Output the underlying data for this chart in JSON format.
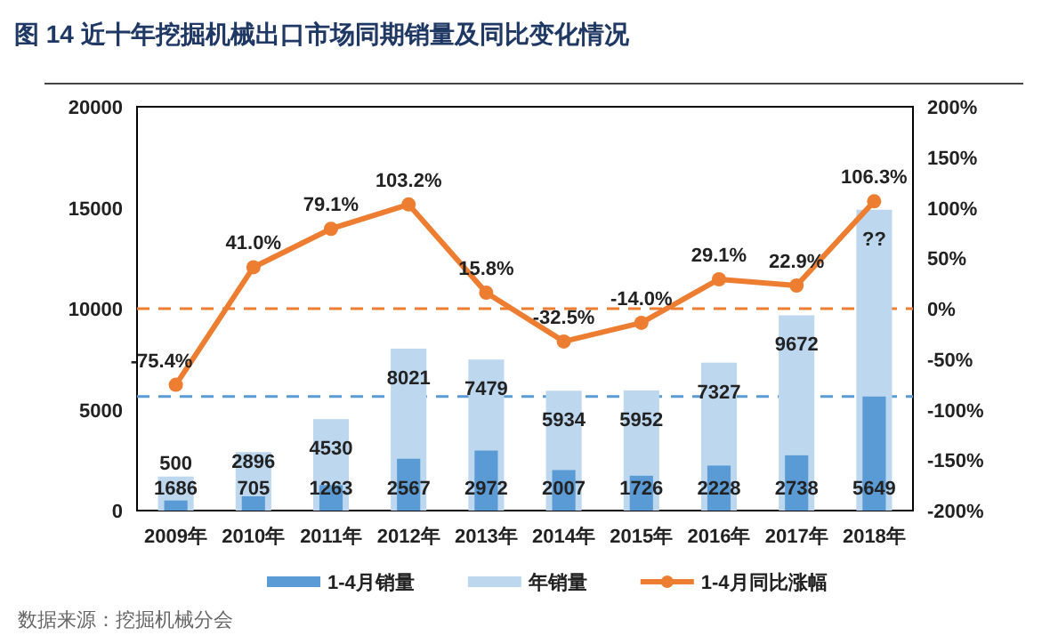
{
  "chart_data": {
    "type": "bar",
    "title": "图 14    近十年挖掘机械出口市场同期销量及同比变化情况",
    "categories": [
      "2009年",
      "2010年",
      "2011年",
      "2012年",
      "2013年",
      "2014年",
      "2015年",
      "2016年",
      "2017年",
      "2018年"
    ],
    "series": [
      {
        "name": "1-4月销量",
        "color": "#5b9bd5",
        "values": [
          500,
          705,
          1263,
          2567,
          2972,
          2007,
          1726,
          2228,
          2738,
          5649
        ],
        "value_labels": [
          "500",
          "705",
          "1263",
          "2567",
          "2972",
          "2007",
          "1726",
          "2228",
          "2738",
          "5649"
        ]
      },
      {
        "name": "年销量",
        "color": "#bdd7ee",
        "values": [
          1686,
          2896,
          4530,
          8021,
          7479,
          5934,
          5952,
          7327,
          9672,
          14900
        ],
        "value_labels": [
          "1686",
          "2896",
          "4530",
          "8021",
          "7479",
          "5934",
          "5952",
          "7327",
          "9672",
          "??"
        ]
      },
      {
        "name": "1-4月同比涨幅",
        "type": "line",
        "axis": "y2",
        "color": "#ed7d31",
        "values": [
          -75.4,
          41.0,
          79.1,
          103.2,
          15.8,
          -32.5,
          -14.0,
          29.1,
          22.9,
          106.3
        ],
        "value_labels": [
          "-75.4%",
          "41.0%",
          "79.1%",
          "103.2%",
          "15.8%",
          "-32.5%",
          "-14.0%",
          "29.1%",
          "22.9%",
          "106.3%"
        ]
      }
    ],
    "ylim": [
      0,
      20000
    ],
    "yticks": [
      0,
      5000,
      10000,
      15000,
      20000
    ],
    "y2lim": [
      -200,
      200
    ],
    "y2ticks": [
      {
        "value": -200,
        "label": "-200%"
      },
      {
        "value": -150,
        "label": "-150%"
      },
      {
        "value": -100,
        "label": "-100%"
      },
      {
        "value": -50,
        "label": "-50%"
      },
      {
        "value": 0,
        "label": "0%"
      },
      {
        "value": 50,
        "label": "50%"
      },
      {
        "value": 100,
        "label": "100%"
      },
      {
        "value": 150,
        "label": "150%"
      },
      {
        "value": 200,
        "label": "200%"
      }
    ],
    "ref_lines": [
      {
        "axis": "y2",
        "value": 0,
        "color": "#ed7d31",
        "line_style": "dashed"
      },
      {
        "axis": "y",
        "value": 5649,
        "color": "#5b9bd5",
        "line_style": "dashed"
      }
    ],
    "marker": "circle",
    "legend": "bottom",
    "grid": false,
    "annotations": [
      "数据来源：挖掘机械分会"
    ]
  }
}
